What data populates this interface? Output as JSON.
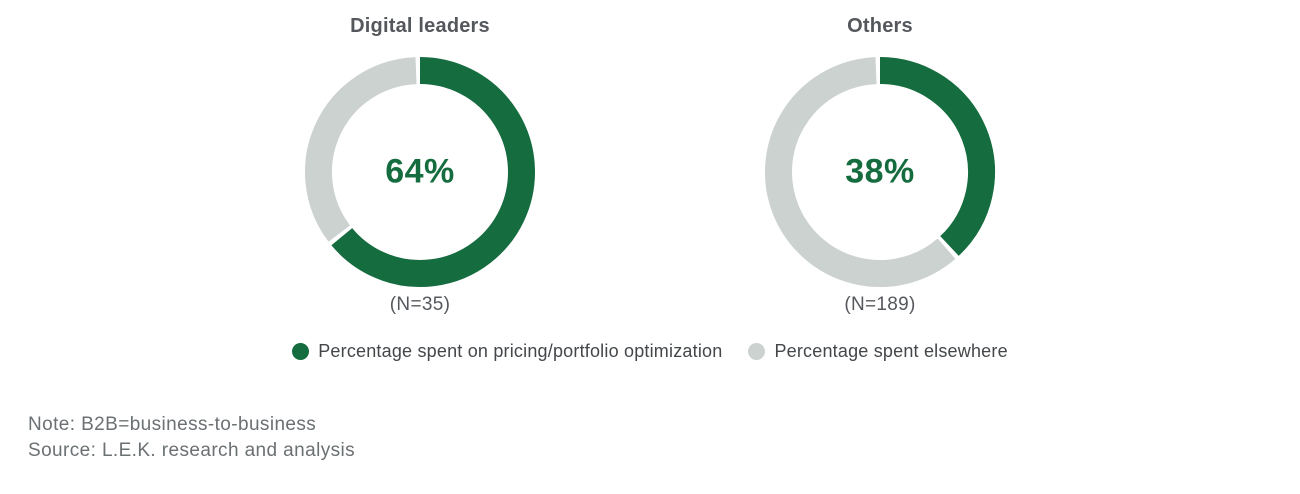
{
  "colors": {
    "accent_green": "#156c3e",
    "light_gray": "#ccd2cf",
    "title_text": "#54575b",
    "legend_text": "#43474a",
    "note_text": "#6b7073",
    "background": "#ffffff"
  },
  "chart_data": [
    {
      "type": "pie",
      "subtype": "donut",
      "title": "Digital leaders",
      "center_label": "64%",
      "n": 35,
      "n_label": "(N=35)",
      "slices": [
        {
          "label": "Percentage spent on pricing/portfolio optimization",
          "value": 64,
          "color": "#156c3e"
        },
        {
          "label": "Percentage spent elsewhere",
          "value": 36,
          "color": "#ccd2cf"
        }
      ]
    },
    {
      "type": "pie",
      "subtype": "donut",
      "title": "Others",
      "center_label": "38%",
      "n": 189,
      "n_label": "(N=189)",
      "slices": [
        {
          "label": "Percentage spent on pricing/portfolio optimization",
          "value": 38,
          "color": "#156c3e"
        },
        {
          "label": "Percentage spent elsewhere",
          "value": 62,
          "color": "#ccd2cf"
        }
      ]
    }
  ],
  "legend": {
    "items": [
      {
        "label": "Percentage spent on pricing/portfolio optimization",
        "color": "#156c3e"
      },
      {
        "label": "Percentage spent elsewhere",
        "color": "#ccd2cf"
      }
    ]
  },
  "notes": {
    "note": "Note: B2B=business-to-business",
    "source": "Source: L.E.K. research and analysis"
  }
}
